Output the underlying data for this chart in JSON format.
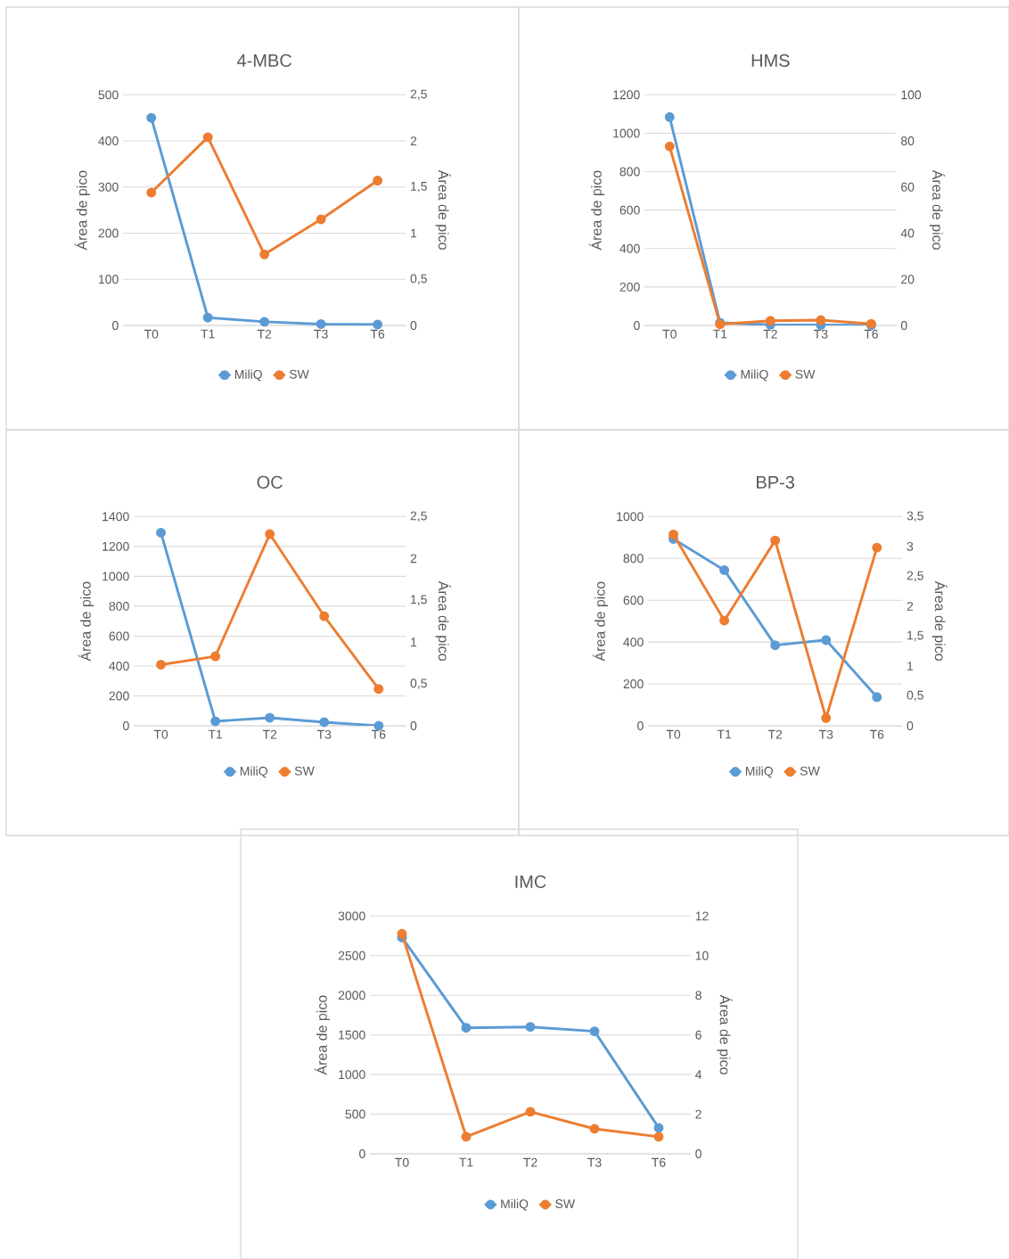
{
  "chart_data": [
    {
      "type": "line",
      "title": "4-MBC",
      "categories": [
        "T0",
        "T1",
        "T2",
        "T3",
        "T6"
      ],
      "ylabel": "Área de pico",
      "y2label": "Área de pico",
      "ylim": [
        0,
        500
      ],
      "yticks": [
        0,
        100,
        200,
        300,
        400,
        500
      ],
      "y2lim": [
        0,
        2.5
      ],
      "y2ticks": [
        0,
        {
          "value": 0.5,
          "label": "0,5"
        },
        1,
        {
          "value": 1.5,
          "label": "1,5"
        },
        2,
        {
          "value": 2.5,
          "label": "2,5"
        }
      ],
      "grid": "y",
      "legend": "bottom",
      "marker": "circle",
      "line_style": "solid",
      "series": [
        {
          "name": "MiliQ",
          "color": "#5b9bd5",
          "values": [
            450,
            17,
            8,
            3,
            2
          ]
        },
        {
          "name": "SW",
          "color": "#ed7d31",
          "axis": "y2",
          "values": [
            1.44,
            2.04,
            0.77,
            1.15,
            1.57
          ]
        }
      ]
    },
    {
      "type": "line",
      "title": "HMS",
      "categories": [
        "T0",
        "T1",
        "T2",
        "T3",
        "T6"
      ],
      "ylabel": "Área de pico",
      "y2label": "Área de pico",
      "ylim": [
        0,
        1200
      ],
      "yticks": [
        0,
        200,
        400,
        600,
        800,
        1000,
        1200
      ],
      "y2lim": [
        0,
        100
      ],
      "y2ticks": [
        0,
        20,
        40,
        60,
        80,
        100
      ],
      "grid": "y",
      "legend": "bottom",
      "marker": "circle",
      "line_style": "solid",
      "series": [
        {
          "name": "MiliQ",
          "color": "#5b9bd5",
          "values": [
            1084,
            14,
            3,
            2,
            1
          ]
        },
        {
          "name": "SW",
          "color": "#ed7d31",
          "axis": "y2",
          "values": [
            77.6,
            0.5,
            2,
            2.3,
            0.7
          ]
        }
      ]
    },
    {
      "type": "line",
      "title": "OC",
      "categories": [
        "T0",
        "T1",
        "T2",
        "T3",
        "T6"
      ],
      "ylabel": "Área de pico",
      "y2label": "Área de pico",
      "ylim": [
        0,
        1400
      ],
      "yticks": [
        0,
        200,
        400,
        600,
        800,
        1000,
        1200,
        1400
      ],
      "y2lim": [
        0,
        2.5
      ],
      "y2ticks": [
        0,
        {
          "value": 0.5,
          "label": "0,5"
        },
        1,
        {
          "value": 1.5,
          "label": "1,5"
        },
        2,
        {
          "value": 2.5,
          "label": "2,5"
        }
      ],
      "grid": "y",
      "legend": "bottom",
      "marker": "circle",
      "line_style": "solid",
      "series": [
        {
          "name": "MiliQ",
          "color": "#5b9bd5",
          "values": [
            1292,
            30,
            54,
            24,
            0
          ]
        },
        {
          "name": "SW",
          "color": "#ed7d31",
          "axis": "y2",
          "values": [
            0.73,
            0.83,
            2.29,
            1.31,
            0.44
          ]
        }
      ]
    },
    {
      "type": "line",
      "title": "BP-3",
      "categories": [
        "T0",
        "T1",
        "T2",
        "T3",
        "T6"
      ],
      "ylabel": "Área de pico",
      "y2label": "Área de pico",
      "ylim": [
        0,
        1000
      ],
      "yticks": [
        0,
        200,
        400,
        600,
        800,
        1000
      ],
      "y2lim": [
        0,
        3.5
      ],
      "y2ticks": [
        0,
        {
          "value": 0.5,
          "label": "0,5"
        },
        1,
        {
          "value": 1.5,
          "label": "1,5"
        },
        2,
        {
          "value": 2.5,
          "label": "2,5"
        },
        3,
        {
          "value": 3.5,
          "label": "3,5"
        }
      ],
      "grid": "y",
      "legend": "bottom",
      "marker": "circle",
      "line_style": "solid",
      "series": [
        {
          "name": "MiliQ",
          "color": "#5b9bd5",
          "values": [
            893,
            744,
            385,
            410,
            137
          ]
        },
        {
          "name": "SW",
          "color": "#ed7d31",
          "axis": "y2",
          "values": [
            3.2,
            1.76,
            3.1,
            0.13,
            2.98
          ]
        }
      ]
    },
    {
      "type": "line",
      "title": "IMC",
      "categories": [
        "T0",
        "T1",
        "T2",
        "T3",
        "T6"
      ],
      "ylabel": "Área de pico",
      "y2label": "Área de pico",
      "ylim": [
        0,
        3000
      ],
      "yticks": [
        0,
        500,
        1000,
        1500,
        2000,
        2500,
        3000
      ],
      "y2lim": [
        0,
        12
      ],
      "y2ticks": [
        0,
        2,
        4,
        6,
        8,
        10,
        12
      ],
      "grid": "y",
      "legend": "bottom",
      "marker": "circle",
      "line_style": "solid",
      "series": [
        {
          "name": "MiliQ",
          "color": "#5b9bd5",
          "values": [
            2729,
            1590,
            1601,
            1545,
            327
          ]
        },
        {
          "name": "SW",
          "color": "#ed7d31",
          "axis": "y2",
          "values": [
            11.1,
            0.86,
            2.12,
            1.26,
            0.86
          ]
        }
      ]
    }
  ]
}
